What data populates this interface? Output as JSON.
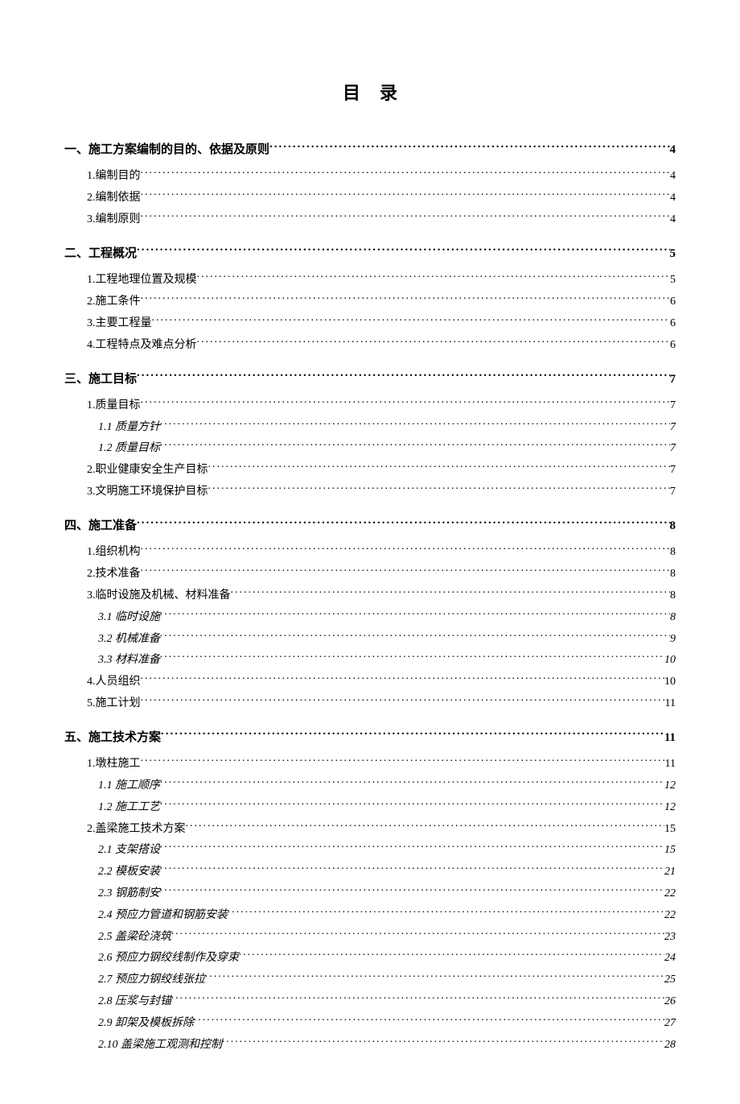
{
  "title": "目录",
  "entries": [
    {
      "level": 0,
      "label": "一、施工方案编制的目的、依据及原则",
      "page": "4"
    },
    {
      "level": 1,
      "label": "1.编制目的",
      "page": "4"
    },
    {
      "level": 1,
      "label": "2.编制依据",
      "page": "4"
    },
    {
      "level": 1,
      "label": "3.编制原则",
      "page": "4"
    },
    {
      "level": 0,
      "label": "二、工程概况",
      "page": "5"
    },
    {
      "level": 1,
      "label": "1.工程地理位置及规模",
      "page": "5"
    },
    {
      "level": 1,
      "label": "2.施工条件",
      "page": "6"
    },
    {
      "level": 1,
      "label": "3.主要工程量",
      "page": "6"
    },
    {
      "level": 1,
      "label": "4.工程特点及难点分析",
      "page": "6"
    },
    {
      "level": 0,
      "label": "三、施工目标",
      "page": "7"
    },
    {
      "level": 1,
      "label": "1.质量目标",
      "page": "7"
    },
    {
      "level": 2,
      "label": "1.1 质量方针",
      "page": "7"
    },
    {
      "level": 2,
      "label": "1.2 质量目标",
      "page": "7"
    },
    {
      "level": 1,
      "label": "2.职业健康安全生产目标",
      "page": "7"
    },
    {
      "level": 1,
      "label": "3.文明施工环境保护目标",
      "page": "7"
    },
    {
      "level": 0,
      "label": "四、施工准备",
      "page": "8"
    },
    {
      "level": 1,
      "label": "1.组织机构",
      "page": "8"
    },
    {
      "level": 1,
      "label": "2.技术准备",
      "page": "8"
    },
    {
      "level": 1,
      "label": "3.临时设施及机械、材料准备",
      "page": "8"
    },
    {
      "level": 2,
      "label": "3.1 临时设施",
      "page": "8"
    },
    {
      "level": 2,
      "label": "3.2 机械准备",
      "page": "9"
    },
    {
      "level": 2,
      "label": "3.3 材料准备",
      "page": "10"
    },
    {
      "level": 1,
      "label": "4.人员组织",
      "page": "10"
    },
    {
      "level": 1,
      "label": "5.施工计划",
      "page": "11"
    },
    {
      "level": 0,
      "label": "五、施工技术方案",
      "page": "11"
    },
    {
      "level": 1,
      "label": "1.墩柱施工",
      "page": "11"
    },
    {
      "level": 2,
      "label": "1.1 施工顺序",
      "page": "12"
    },
    {
      "level": 2,
      "label": "1.2 施工工艺",
      "page": "12"
    },
    {
      "level": 1,
      "label": "2.盖梁施工技术方案",
      "page": "15"
    },
    {
      "level": 2,
      "label": "2.1 支架搭设",
      "page": "15"
    },
    {
      "level": 2,
      "label": "2.2 模板安装",
      "page": "21"
    },
    {
      "level": 2,
      "label": "2.3 钢筋制安",
      "page": "22"
    },
    {
      "level": 2,
      "label": "2.4 预应力管道和钢筋安装",
      "page": "22"
    },
    {
      "level": 2,
      "label": "2.5 盖梁砼浇筑",
      "page": "23"
    },
    {
      "level": 2,
      "label": "2.6 预应力钢绞线制作及穿束",
      "page": "24"
    },
    {
      "level": 2,
      "label": "2.7 预应力钢绞线张拉",
      "page": "25"
    },
    {
      "level": 2,
      "label": "2.8 压浆与封锚",
      "page": "26"
    },
    {
      "level": 2,
      "label": "2.9 卸架及模板拆除",
      "page": "27"
    },
    {
      "level": 2,
      "label": "2.10 盖梁施工观测和控制",
      "page": "28"
    }
  ]
}
